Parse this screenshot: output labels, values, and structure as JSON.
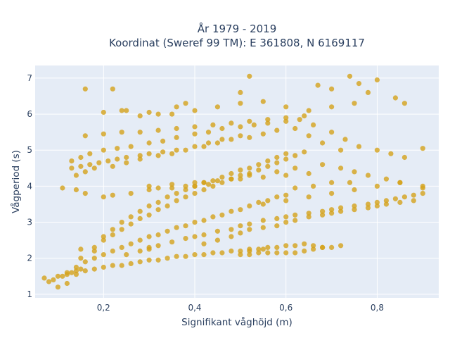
{
  "chart_data": {
    "type": "scatter",
    "title": "År 1979 - 2019",
    "subtitle": "Koordinat (Sweref 99 TM): E 361808, N 6169117",
    "xlabel": "Signifikant våghöjd (m)",
    "ylabel": "Vågperiod (s)",
    "xlim": [
      0.05,
      0.935
    ],
    "ylim": [
      0.9,
      7.35
    ],
    "x_ticks": [
      0.2,
      0.4,
      0.6,
      0.8
    ],
    "x_tick_labels": [
      "0,2",
      "0,4",
      "0,6",
      "0,8"
    ],
    "y_ticks": [
      1,
      2,
      3,
      4,
      5,
      6,
      7
    ],
    "y_tick_labels": [
      "1",
      "2",
      "3",
      "4",
      "5",
      "6",
      "7"
    ],
    "grid": true,
    "legend": "none",
    "colors": {
      "marker": "#d4a21b",
      "plot_bg": "#e5ecf6",
      "grid": "#ffffff",
      "text": "#2a3f5f"
    },
    "series": [
      {
        "x": [
          0.07,
          0.08,
          0.09,
          0.1,
          0.11,
          0.12,
          0.13,
          0.14,
          0.15,
          0.1,
          0.12,
          0.14,
          0.16,
          0.18,
          0.2,
          0.22,
          0.24,
          0.26,
          0.28,
          0.3,
          0.32,
          0.34,
          0.36,
          0.38,
          0.4,
          0.42,
          0.44,
          0.46,
          0.48,
          0.5,
          0.52,
          0.12,
          0.14,
          0.16,
          0.18,
          0.2,
          0.22,
          0.24,
          0.26,
          0.28,
          0.3,
          0.32,
          0.34,
          0.36,
          0.38,
          0.4,
          0.42,
          0.44,
          0.46,
          0.48,
          0.5,
          0.52,
          0.54,
          0.56,
          0.58,
          0.6,
          0.15,
          0.18,
          0.2,
          0.22,
          0.24,
          0.26,
          0.28,
          0.3,
          0.32,
          0.34,
          0.36,
          0.38,
          0.4,
          0.42,
          0.44,
          0.46,
          0.48,
          0.5,
          0.52,
          0.54,
          0.56,
          0.58,
          0.6,
          0.62,
          0.64,
          0.2,
          0.22,
          0.24,
          0.26,
          0.28,
          0.3,
          0.32,
          0.34,
          0.36,
          0.38,
          0.4,
          0.42,
          0.44,
          0.46,
          0.48,
          0.5,
          0.52,
          0.54,
          0.56,
          0.58,
          0.6,
          0.25,
          0.28,
          0.3,
          0.32,
          0.35,
          0.38,
          0.4,
          0.42,
          0.45,
          0.48,
          0.5,
          0.52,
          0.55,
          0.58,
          0.6,
          0.62,
          0.65,
          0.68,
          0.7,
          0.72,
          0.75,
          0.78,
          0.8,
          0.82,
          0.84,
          0.86,
          0.88,
          0.9,
          0.42,
          0.45,
          0.48,
          0.5,
          0.52,
          0.55,
          0.58,
          0.6,
          0.62,
          0.65,
          0.68,
          0.7,
          0.72,
          0.75,
          0.78,
          0.8,
          0.82,
          0.85,
          0.88,
          0.5,
          0.52,
          0.54,
          0.56,
          0.58,
          0.6,
          0.62,
          0.64,
          0.66,
          0.68,
          0.52,
          0.54,
          0.56,
          0.58,
          0.6,
          0.62,
          0.64,
          0.66,
          0.68,
          0.7,
          0.72,
          0.13,
          0.15,
          0.17,
          0.19,
          0.21,
          0.23,
          0.25,
          0.28,
          0.3,
          0.33,
          0.36,
          0.4,
          0.43,
          0.46,
          0.5,
          0.13,
          0.15,
          0.17,
          0.2,
          0.23,
          0.26,
          0.3,
          0.33,
          0.36,
          0.4,
          0.43,
          0.46,
          0.5,
          0.53,
          0.56,
          0.6,
          0.63,
          0.66,
          0.7,
          0.73,
          0.76,
          0.8,
          0.83,
          0.86,
          0.14,
          0.16,
          0.18,
          0.22,
          0.25,
          0.28,
          0.32,
          0.35,
          0.38,
          0.42,
          0.45,
          0.48,
          0.52,
          0.55,
          0.58,
          0.62,
          0.65,
          0.68,
          0.72,
          0.16,
          0.2,
          0.24,
          0.28,
          0.32,
          0.36,
          0.4,
          0.44,
          0.48,
          0.52,
          0.56,
          0.6,
          0.64,
          0.25,
          0.3,
          0.35,
          0.4,
          0.45,
          0.5,
          0.55,
          0.6,
          0.65,
          0.7,
          0.75,
          0.3,
          0.35,
          0.4,
          0.45,
          0.5,
          0.55,
          0.6,
          0.65,
          0.32,
          0.38,
          0.42,
          0.48,
          0.52,
          0.58,
          0.62,
          0.68,
          0.72,
          0.75,
          0.78,
          0.82,
          0.85,
          0.55,
          0.6,
          0.65,
          0.7,
          0.75,
          0.8,
          0.85,
          0.16,
          0.2,
          0.22,
          0.24,
          0.28,
          0.32,
          0.36,
          0.38,
          0.5,
          0.52,
          0.67,
          0.7,
          0.74,
          0.76,
          0.78,
          0.8,
          0.84,
          0.86,
          0.9,
          0.11,
          0.14,
          0.16,
          0.2,
          0.22,
          0.26,
          0.3,
          0.35,
          0.4,
          0.43,
          0.62,
          0.66,
          0.7,
          0.74,
          0.9,
          0.15,
          0.18,
          0.3,
          0.55,
          0.9
        ],
        "y": [
          1.45,
          1.35,
          1.4,
          1.5,
          1.5,
          1.55,
          1.6,
          1.65,
          1.7,
          1.2,
          1.3,
          1.55,
          1.65,
          1.7,
          1.75,
          1.8,
          1.8,
          1.85,
          1.9,
          1.95,
          1.95,
          2.0,
          2.05,
          2.05,
          2.1,
          2.1,
          2.15,
          2.15,
          2.2,
          2.2,
          2.2,
          1.6,
          1.75,
          1.9,
          2.0,
          2.1,
          2.2,
          2.3,
          2.4,
          2.5,
          2.6,
          2.65,
          2.75,
          2.85,
          2.9,
          3.0,
          3.05,
          3.15,
          3.2,
          3.3,
          3.35,
          3.45,
          3.55,
          3.6,
          3.7,
          3.75,
          2.0,
          2.3,
          2.5,
          2.65,
          2.8,
          2.95,
          3.1,
          3.2,
          3.35,
          3.45,
          3.6,
          3.7,
          3.8,
          3.9,
          4.0,
          4.1,
          4.2,
          4.3,
          4.35,
          4.45,
          4.55,
          4.65,
          4.75,
          4.85,
          4.95,
          2.6,
          2.8,
          3.0,
          3.15,
          3.3,
          3.45,
          3.55,
          3.7,
          3.8,
          3.9,
          4.0,
          4.1,
          4.15,
          4.25,
          4.35,
          4.45,
          4.5,
          4.6,
          4.7,
          4.8,
          4.9,
          2.1,
          2.2,
          2.3,
          2.35,
          2.45,
          2.55,
          2.6,
          2.65,
          2.75,
          2.8,
          2.9,
          2.95,
          3.05,
          3.1,
          3.15,
          3.2,
          3.25,
          3.3,
          3.35,
          3.4,
          3.45,
          3.5,
          3.55,
          3.6,
          3.65,
          3.7,
          3.75,
          3.8,
          2.4,
          2.5,
          2.6,
          2.7,
          2.8,
          2.85,
          2.9,
          3.0,
          3.05,
          3.15,
          3.2,
          3.25,
          3.3,
          3.35,
          3.4,
          3.45,
          3.5,
          3.55,
          3.6,
          2.1,
          2.1,
          2.15,
          2.15,
          2.15,
          2.15,
          2.15,
          2.2,
          2.25,
          2.3,
          2.25,
          2.25,
          2.3,
          2.3,
          2.35,
          2.35,
          2.4,
          2.35,
          2.3,
          2.3,
          2.35,
          4.5,
          4.55,
          4.6,
          4.65,
          4.7,
          4.75,
          4.8,
          4.85,
          4.9,
          4.95,
          5.0,
          5.1,
          5.2,
          5.3,
          5.4,
          4.7,
          4.8,
          4.9,
          5.0,
          5.05,
          5.1,
          5.2,
          5.25,
          5.35,
          5.45,
          5.5,
          5.6,
          5.65,
          5.7,
          5.75,
          5.8,
          5.85,
          5.7,
          5.5,
          5.3,
          5.1,
          5.0,
          4.9,
          4.8,
          4.3,
          4.4,
          4.5,
          4.55,
          4.65,
          4.75,
          4.85,
          4.9,
          5.0,
          5.1,
          5.2,
          5.3,
          5.35,
          5.45,
          5.55,
          5.6,
          5.4,
          5.2,
          5.0,
          5.4,
          5.45,
          5.5,
          5.5,
          5.55,
          5.6,
          5.65,
          5.7,
          5.75,
          5.8,
          5.85,
          5.9,
          5.95,
          6.1,
          6.05,
          6.0,
          6.1,
          6.2,
          6.3,
          6.35,
          6.2,
          6.1,
          6.2,
          6.3,
          4.0,
          4.05,
          4.1,
          4.15,
          4.2,
          4.25,
          4.3,
          4.35,
          3.95,
          4.0,
          4.1,
          4.2,
          4.3,
          4.4,
          4.5,
          4.6,
          4.5,
          4.4,
          4.3,
          4.2,
          4.1,
          3.5,
          3.6,
          3.7,
          3.8,
          3.9,
          4.0,
          4.1,
          6.7,
          6.05,
          6.7,
          6.1,
          5.95,
          6.0,
          6.2,
          6.3,
          6.6,
          7.05,
          6.8,
          6.7,
          7.05,
          6.85,
          6.6,
          6.95,
          6.45,
          6.3,
          5.05,
          3.95,
          3.9,
          3.8,
          3.7,
          3.75,
          3.8,
          3.9,
          3.95,
          4.0,
          4.05,
          3.95,
          4.0,
          4.1,
          4.1,
          4.0,
          2.25,
          2.2,
          2.25,
          2.25,
          3.95
        ]
      }
    ]
  }
}
